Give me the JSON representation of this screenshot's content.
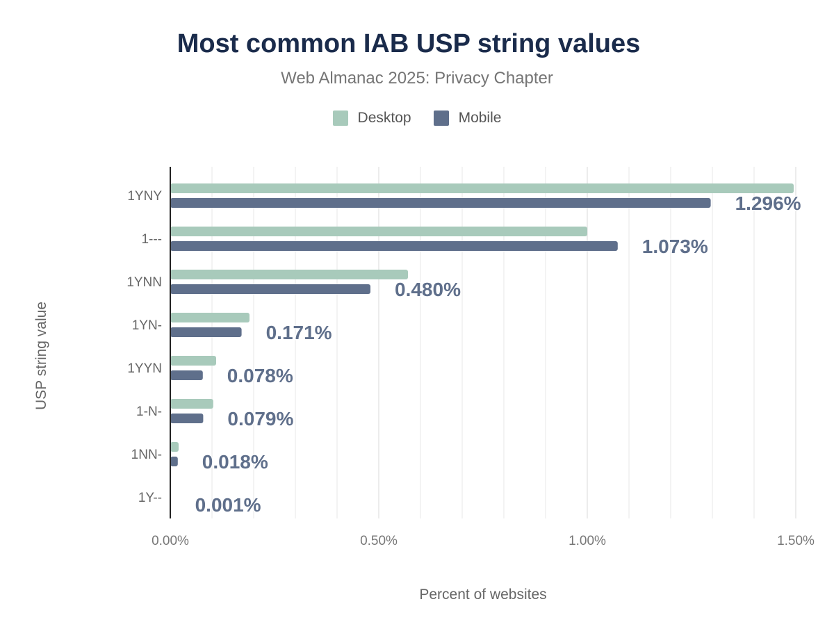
{
  "chart_data": {
    "type": "bar",
    "orientation": "horizontal",
    "title": "Most common IAB USP string values",
    "subtitle": "Web Almanac 2025: Privacy Chapter",
    "xlabel": "Percent of websites",
    "ylabel": "USP string value",
    "xlim": [
      0,
      1.5
    ],
    "x_ticks": [
      "0.00%",
      "0.50%",
      "1.00%",
      "1.50%"
    ],
    "grid": true,
    "legend_position": "top",
    "categories": [
      "1YNY",
      "1---",
      "1YNN",
      "1YN-",
      "1YYN",
      "1-N-",
      "1NN-",
      "1Y--"
    ],
    "series": [
      {
        "name": "Desktop",
        "color": "#a8cabb",
        "values": [
          1.495,
          1.0,
          0.57,
          0.19,
          0.11,
          0.103,
          0.02,
          0.002
        ]
      },
      {
        "name": "Mobile",
        "color": "#5f6f8b",
        "values": [
          1.296,
          1.073,
          0.48,
          0.171,
          0.078,
          0.079,
          0.018,
          0.001
        ]
      }
    ],
    "data_labels": [
      "1.296%",
      "1.073%",
      "0.480%",
      "0.171%",
      "0.078%",
      "0.079%",
      "0.018%",
      "0.001%"
    ]
  }
}
